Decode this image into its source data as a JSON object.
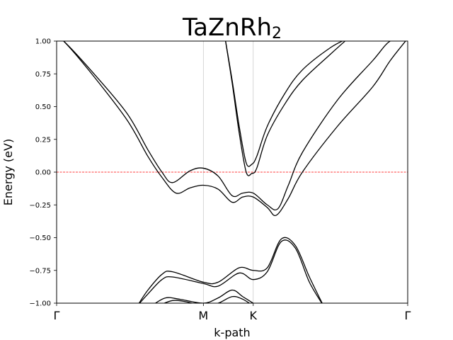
{
  "chart_data": {
    "type": "line",
    "title": "TaZnRh",
    "title_subscript": "2",
    "xlabel": "k-path",
    "ylabel": "Energy (eV)",
    "ylim": [
      -1.0,
      1.0
    ],
    "yticks": [
      "1.00",
      "0.75",
      "0.50",
      "0.25",
      "0.00",
      "−0.25",
      "−0.50",
      "−0.75",
      "−1.00"
    ],
    "ytick_values": [
      1.0,
      0.75,
      0.5,
      0.25,
      0.0,
      -0.25,
      -0.5,
      -0.75,
      -1.0
    ],
    "xlim": [
      0,
      1
    ],
    "high_symmetry_points": [
      {
        "label": "Γ",
        "x": 0.0
      },
      {
        "label": "M",
        "x": 0.418
      },
      {
        "label": "K",
        "x": 0.56
      },
      {
        "label": "Γ",
        "x": 1.0
      }
    ],
    "fermi_level": 0.0,
    "fermi_color": "#ff0000",
    "band_color": "#000000",
    "vline_color": "#cccccc",
    "grid": false,
    "series": [
      {
        "x": [
          0.0,
          0.02,
          0.1,
          0.2,
          0.26,
          0.3,
          0.34,
          0.38,
          0.418,
          0.46,
          0.5,
          0.53,
          0.56,
          0.6,
          0.625,
          0.66,
          0.7,
          0.8,
          0.9,
          0.95,
          1.0
        ],
        "y": [
          1.02,
          1.0,
          0.75,
          0.4,
          0.12,
          -0.04,
          -0.16,
          -0.12,
          -0.1,
          -0.13,
          -0.23,
          -0.19,
          -0.19,
          -0.27,
          -0.33,
          -0.2,
          0.0,
          0.35,
          0.65,
          0.85,
          1.02
        ]
      },
      {
        "x": [
          0.0,
          0.02,
          0.1,
          0.2,
          0.26,
          0.3,
          0.33,
          0.38,
          0.418,
          0.46,
          0.5,
          0.53,
          0.56,
          0.6,
          0.63,
          0.66,
          0.7,
          0.8,
          0.9,
          0.95,
          1.0
        ],
        "y": [
          1.02,
          1.0,
          0.77,
          0.45,
          0.17,
          0.0,
          -0.08,
          0.01,
          0.03,
          -0.03,
          -0.18,
          -0.16,
          -0.16,
          -0.25,
          -0.28,
          -0.1,
          0.15,
          0.55,
          0.85,
          1.0,
          1.02
        ]
      },
      {
        "x": [
          0.48,
          0.5,
          0.52,
          0.54,
          0.556,
          0.57,
          0.6,
          0.65,
          0.7,
          0.78,
          0.83
        ],
        "y": [
          1.02,
          0.7,
          0.35,
          0.07,
          0.06,
          0.12,
          0.35,
          0.6,
          0.78,
          0.95,
          1.02
        ]
      },
      {
        "x": [
          0.48,
          0.5,
          0.52,
          0.54,
          0.556,
          0.57,
          0.6,
          0.65,
          0.7,
          0.78,
          0.83
        ],
        "y": [
          1.02,
          0.68,
          0.3,
          0.0,
          -0.01,
          0.03,
          0.28,
          0.52,
          0.7,
          0.9,
          1.02
        ]
      },
      {
        "x": [
          0.23,
          0.26,
          0.3,
          0.33,
          0.418,
          0.46,
          0.52,
          0.56,
          0.6,
          0.64,
          0.68,
          0.72,
          0.76
        ],
        "y": [
          -1.02,
          -0.9,
          -0.78,
          -0.76,
          -0.84,
          -0.84,
          -0.73,
          -0.75,
          -0.73,
          -0.51,
          -0.56,
          -0.8,
          -1.02
        ]
      },
      {
        "x": [
          0.23,
          0.26,
          0.3,
          0.33,
          0.418,
          0.46,
          0.52,
          0.56,
          0.6,
          0.64,
          0.68,
          0.72,
          0.76
        ],
        "y": [
          -1.02,
          -0.93,
          -0.82,
          -0.8,
          -0.85,
          -0.87,
          -0.77,
          -0.82,
          -0.76,
          -0.53,
          -0.58,
          -0.84,
          -1.02
        ]
      },
      {
        "x": [
          0.27,
          0.31,
          0.35,
          0.418,
          0.46,
          0.5,
          0.53,
          0.56
        ],
        "y": [
          -1.02,
          -0.96,
          -0.97,
          -1.0,
          -0.96,
          -0.9,
          -0.95,
          -1.0
        ]
      },
      {
        "x": [
          0.29,
          0.33,
          0.37,
          0.418,
          0.46,
          0.5,
          0.53,
          0.56
        ],
        "y": [
          -1.02,
          -0.98,
          -0.99,
          -1.02,
          -1.0,
          -0.95,
          -0.97,
          -1.02
        ]
      }
    ]
  }
}
